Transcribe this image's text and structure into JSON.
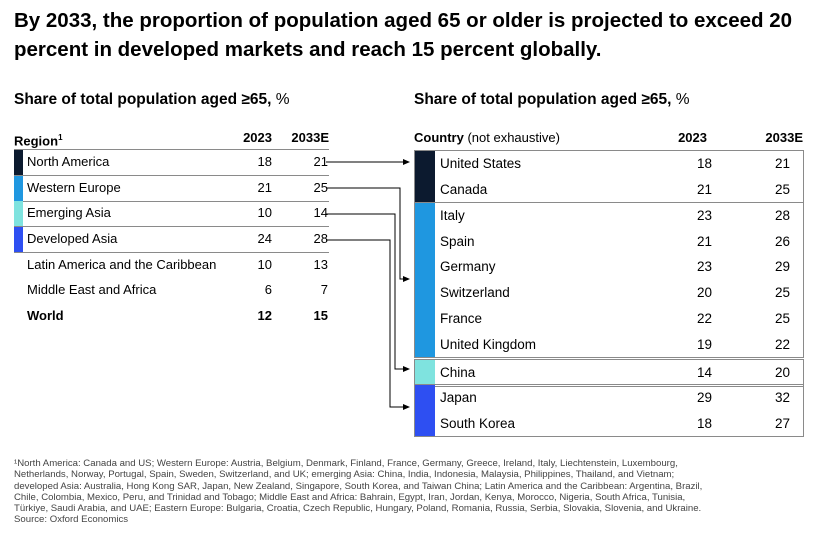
{
  "title": "By 2033, the proportion of population aged 65 or older is projected to exceed 20 percent in developed markets and reach 15 percent globally.",
  "left_panel": {
    "subtitle": "Share of total population aged ≥65,",
    "subtitle_unit": " %",
    "col_region": "Region",
    "col_region_sup": "1",
    "col_2023": "2023",
    "col_2033": "2033E",
    "rows": [
      {
        "name": "North America",
        "v2023": "18",
        "v2033": "21",
        "color": "#0c1a2f"
      },
      {
        "name": "Western Europe",
        "v2023": "21",
        "v2033": "25",
        "color": "#1f97e0"
      },
      {
        "name": "Emerging Asia",
        "v2023": "10",
        "v2033": "14",
        "color": "#7fe3df"
      },
      {
        "name": "Developed Asia",
        "v2023": "24",
        "v2033": "28",
        "color": "#2e4ff2"
      },
      {
        "name": "Latin America and the Caribbean",
        "v2023": "10",
        "v2033": "13",
        "color": ""
      },
      {
        "name": "Middle East and Africa",
        "v2023": "6",
        "v2033": "7",
        "color": ""
      },
      {
        "name": "World",
        "v2023": "12",
        "v2033": "15",
        "color": ""
      }
    ]
  },
  "right_panel": {
    "subtitle": "Share of total population aged ≥65,",
    "subtitle_unit": " %",
    "col_country": "Country",
    "col_country_note": " (not exhaustive)",
    "col_2023": "2023",
    "col_2033": "2033E",
    "groups": [
      {
        "region": "North America",
        "color": "#0c1a2f",
        "rows": [
          {
            "name": "United States",
            "v2023": "18",
            "v2033": "21"
          },
          {
            "name": "Canada",
            "v2023": "21",
            "v2033": "25"
          }
        ]
      },
      {
        "region": "Western Europe",
        "color": "#1f97e0",
        "rows": [
          {
            "name": "Italy",
            "v2023": "23",
            "v2033": "28"
          },
          {
            "name": "Spain",
            "v2023": "21",
            "v2033": "26"
          },
          {
            "name": "Germany",
            "v2023": "23",
            "v2033": "29"
          },
          {
            "name": "Switzerland",
            "v2023": "20",
            "v2033": "25"
          },
          {
            "name": "France",
            "v2023": "22",
            "v2033": "25"
          },
          {
            "name": "United Kingdom",
            "v2023": "19",
            "v2033": "22"
          }
        ]
      },
      {
        "region": "Emerging Asia",
        "color": "#7fe3df",
        "rows": [
          {
            "name": "China",
            "v2023": "14",
            "v2033": "20"
          }
        ]
      },
      {
        "region": "Developed Asia",
        "color": "#2e4ff2",
        "rows": [
          {
            "name": "Japan",
            "v2023": "29",
            "v2033": "32"
          },
          {
            "name": "South Korea",
            "v2023": "18",
            "v2033": "27"
          }
        ]
      }
    ]
  },
  "footnote": {
    "lines": [
      "¹North America: Canada and US; Western Europe: Austria, Belgium, Denmark, Finland, France, Germany, Greece, Ireland, Italy, Liechtenstein, Luxembourg,",
      "Netherlands, Norway, Portugal, Spain, Sweden, Switzerland, and UK; emerging Asia: China, India, Indonesia, Malaysia, Philippines, Thailand, and Vietnam;",
      "developed Asia: Australia, Hong Kong SAR, Japan, New Zealand, Singapore, South Korea, and Taiwan China; Latin America and the Caribbean: Argentina, Brazil,",
      "Chile, Colombia, Mexico, Peru, and Trinidad and Tobago; Middle East and Africa: Bahrain, Egypt, Iran, Jordan, Kenya, Morocco, Nigeria, South Africa, Tunisia,",
      "Türkiye, Saudi Arabia, and UAE; Eastern Europe: Bulgaria, Croatia, Czech Republic, Hungary, Poland, Romania, Russia, Serbia, Slovakia, Slovenia, and Ukraine."
    ],
    "source": "Source: Oxford Economics"
  },
  "chart_data": {
    "type": "table",
    "title": "By 2033, the proportion of population aged 65 or older is projected to exceed 20 percent in developed markets and reach 15 percent globally.",
    "unit": "Share of total population aged ≥65, %",
    "columns": [
      "2023",
      "2033E"
    ],
    "regions": [
      {
        "name": "North America",
        "2023": 18,
        "2033E": 21
      },
      {
        "name": "Western Europe",
        "2023": 21,
        "2033E": 25
      },
      {
        "name": "Emerging Asia",
        "2023": 10,
        "2033E": 14
      },
      {
        "name": "Developed Asia",
        "2023": 24,
        "2033E": 28
      },
      {
        "name": "Latin America and the Caribbean",
        "2023": 10,
        "2033E": 13
      },
      {
        "name": "Middle East and Africa",
        "2023": 6,
        "2033E": 7
      },
      {
        "name": "World",
        "2023": 12,
        "2033E": 15
      }
    ],
    "countries": [
      {
        "name": "United States",
        "region": "North America",
        "2023": 18,
        "2033E": 21
      },
      {
        "name": "Canada",
        "region": "North America",
        "2023": 21,
        "2033E": 25
      },
      {
        "name": "Italy",
        "region": "Western Europe",
        "2023": 23,
        "2033E": 28
      },
      {
        "name": "Spain",
        "region": "Western Europe",
        "2023": 21,
        "2033E": 26
      },
      {
        "name": "Germany",
        "region": "Western Europe",
        "2023": 23,
        "2033E": 29
      },
      {
        "name": "Switzerland",
        "region": "Western Europe",
        "2023": 20,
        "2033E": 25
      },
      {
        "name": "France",
        "region": "Western Europe",
        "2023": 22,
        "2033E": 25
      },
      {
        "name": "United Kingdom",
        "region": "Western Europe",
        "2023": 19,
        "2033E": 22
      },
      {
        "name": "China",
        "region": "Emerging Asia",
        "2023": 14,
        "2033E": 20
      },
      {
        "name": "Japan",
        "region": "Developed Asia",
        "2023": 29,
        "2033E": 32
      },
      {
        "name": "South Korea",
        "region": "Developed Asia",
        "2023": 18,
        "2033E": 27
      }
    ]
  }
}
